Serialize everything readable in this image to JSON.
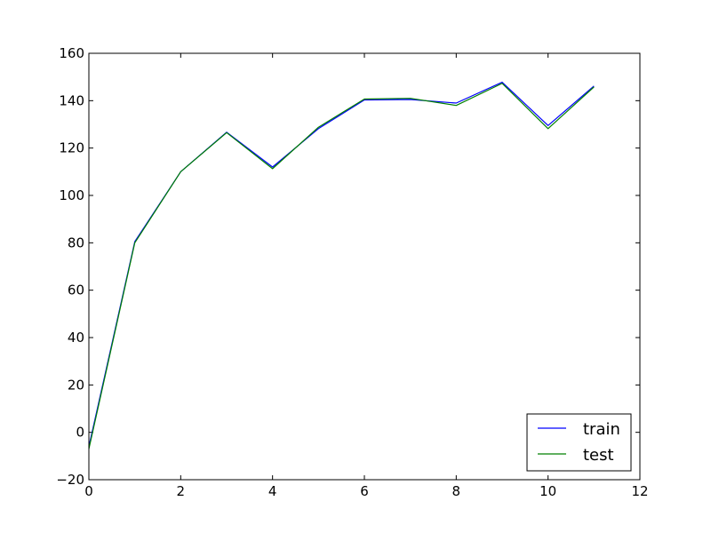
{
  "chart_data": {
    "type": "line",
    "title": "",
    "xlabel": "",
    "ylabel": "",
    "xlim": [
      0,
      12
    ],
    "ylim": [
      -20,
      160
    ],
    "xticks": [
      0,
      2,
      4,
      6,
      8,
      10,
      12
    ],
    "yticks": [
      -20,
      0,
      20,
      40,
      60,
      80,
      100,
      120,
      140,
      160
    ],
    "x": [
      0,
      1,
      2,
      3,
      4,
      5,
      6,
      7,
      8,
      9,
      10,
      11
    ],
    "series": [
      {
        "name": "train",
        "color": "#0000ff",
        "values": [
          -6,
          80.5,
          110,
          126.7,
          112,
          128.2,
          140.3,
          140.5,
          139,
          147.8,
          129.5,
          146.2
        ]
      },
      {
        "name": "test",
        "color": "#008000",
        "values": [
          -7,
          80,
          110,
          126.5,
          111.3,
          128.8,
          140.7,
          141,
          138,
          147.3,
          128.2,
          145.8
        ]
      }
    ],
    "grid": false,
    "legend_position": "lower-right"
  }
}
